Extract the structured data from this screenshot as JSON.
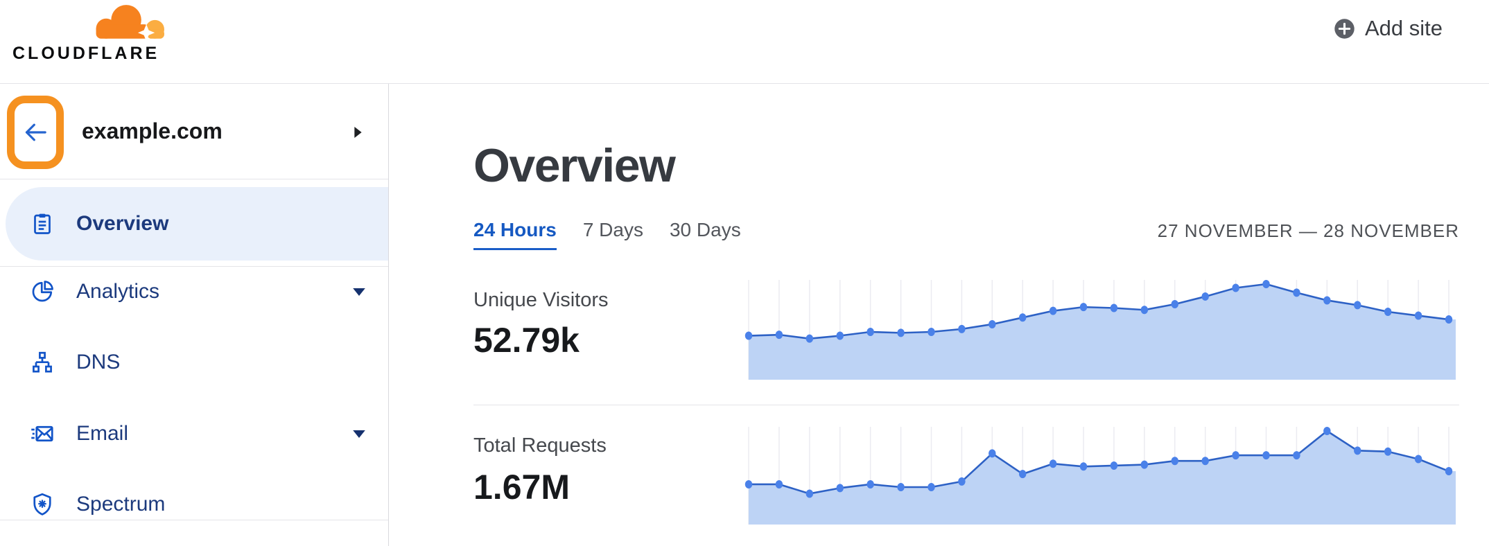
{
  "header": {
    "logo_text": "CLOUDFLARE",
    "add_site_label": "Add site"
  },
  "sidebar": {
    "site_name": "example.com",
    "items": [
      {
        "label": "Overview",
        "icon": "clipboard-icon",
        "active": true,
        "has_caret": false
      },
      {
        "label": "Analytics",
        "icon": "pie-chart-icon",
        "active": false,
        "has_caret": true
      },
      {
        "label": "DNS",
        "icon": "dns-tree-icon",
        "active": false,
        "has_caret": false
      },
      {
        "label": "Email",
        "icon": "email-icon",
        "active": false,
        "has_caret": true
      },
      {
        "label": "Spectrum",
        "icon": "shield-spark-icon",
        "active": false,
        "has_caret": false
      }
    ]
  },
  "main": {
    "title": "Overview",
    "tabs": [
      {
        "label": "24 Hours",
        "active": true
      },
      {
        "label": "7 Days",
        "active": false
      },
      {
        "label": "30 Days",
        "active": false
      }
    ],
    "date_range": "27 NOVEMBER — 28 NOVEMBER",
    "metrics": [
      {
        "label": "Unique Visitors",
        "value": "52.79k"
      },
      {
        "label": "Total Requests",
        "value": "1.67M"
      }
    ]
  },
  "colors": {
    "brand_orange": "#f6821f",
    "brand_orange_light": "#fbad41",
    "annotation_highlight": "#f59120",
    "link_blue": "#1a5dc8",
    "nav_navy": "#1c3a7d",
    "icon_blue": "#1254c8",
    "selected_bg": "#e9f0fb",
    "chart_line": "#2d61c5",
    "chart_fill": "#bdd3f5",
    "chart_dot": "#4a81e9",
    "gridline": "#ebebf1"
  },
  "chart_data": [
    {
      "type": "area",
      "title": "Unique Visitors",
      "total_label": "52.79k",
      "x_range": "hourly points, 27 November — 28 November (24 hours)",
      "points": 24,
      "y_axis": "unlabeled sparkline; values are % of peak hour",
      "grid": "vertical gridlines at each hourly point, no axis labels, no legend",
      "values_pct_of_peak": [
        46,
        47,
        43,
        46,
        50,
        49,
        50,
        53,
        58,
        65,
        72,
        76,
        75,
        73,
        79,
        87,
        96,
        100,
        91,
        83,
        78,
        71,
        67,
        63
      ]
    },
    {
      "type": "area",
      "title": "Total Requests",
      "total_label": "1.67M",
      "x_range": "hourly points, 27 November — 28 November (24 hours)",
      "points": 24,
      "y_axis": "unlabeled sparkline; values are % of peak hour",
      "grid": "vertical gridlines at each hourly point, no axis labels, no legend",
      "values_pct_of_peak": [
        43,
        43,
        33,
        39,
        43,
        40,
        40,
        46,
        76,
        54,
        65,
        62,
        63,
        64,
        68,
        68,
        74,
        74,
        74,
        100,
        79,
        78,
        70,
        57
      ]
    }
  ]
}
